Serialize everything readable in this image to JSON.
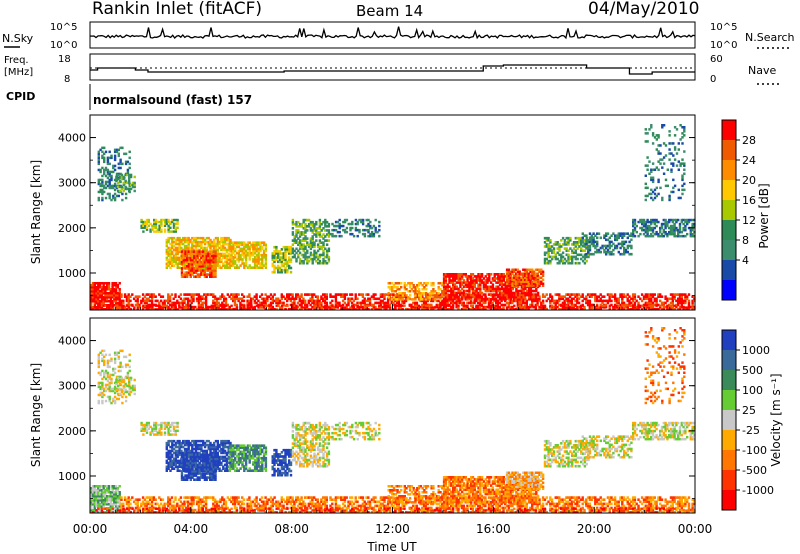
{
  "header": {
    "title": "Rankin Inlet (fitACF)",
    "beam": "Beam 14",
    "date": "04/May/2010"
  },
  "noise_panel": {
    "left_label": "N.Sky",
    "left_ticks": [
      "10^5",
      "10^0"
    ],
    "right_ticks": [
      "10^5",
      "10^0"
    ],
    "right_label": "N.Search"
  },
  "freq_panel": {
    "left_label_1": "Freq.",
    "left_label_2": "[MHz]",
    "left_ticks": [
      "18",
      "8"
    ],
    "right_ticks": [
      "60",
      "0"
    ],
    "right_label": "Nave"
  },
  "cpid": {
    "label": "CPID",
    "value": "normalsound (fast) 157"
  },
  "colorbars": {
    "power": {
      "label": "Power [dB]",
      "ticks": [
        "28",
        "24",
        "20",
        "16",
        "12",
        "8",
        "4"
      ],
      "colors": [
        "#ff0000",
        "#f05a00",
        "#ff8c00",
        "#ffc800",
        "#a8c800",
        "#2e8b57",
        "#3c8c6e",
        "#1a4aa8",
        "#0000ff"
      ]
    },
    "velocity": {
      "label": "Velocity [m s⁻¹]",
      "ticks": [
        "1000",
        "500",
        "100",
        "25",
        "-25",
        "-100",
        "-500",
        "-1000"
      ],
      "colors": [
        "#2040c0",
        "#3a6a9a",
        "#3a8a5a",
        "#66cc33",
        "#c8c8c8",
        "#ffaa00",
        "#ff7700",
        "#ff3300",
        "#ff0000"
      ]
    }
  },
  "x_axis": {
    "label": "Time UT",
    "ticks": [
      "00:00",
      "04:00",
      "08:00",
      "12:00",
      "16:00",
      "20:00",
      "00:00"
    ]
  },
  "chart_data": [
    {
      "type": "heatmap",
      "panel": "power",
      "xlabel": "",
      "ylabel": "Slant Range [km]",
      "y_ticks": [
        "1000",
        "2000",
        "3000",
        "4000"
      ],
      "x_range_hours": [
        0,
        24
      ],
      "y_range_km": [
        180,
        4500
      ],
      "colorbar_label": "Power [dB]",
      "clim": [
        0,
        30
      ]
    },
    {
      "type": "heatmap",
      "panel": "velocity",
      "xlabel": "Time UT",
      "ylabel": "Slant Range [km]",
      "y_ticks": [
        "1000",
        "2000",
        "3000",
        "4000"
      ],
      "x_range_hours": [
        0,
        24
      ],
      "y_range_km": [
        180,
        4500
      ],
      "colorbar_label": "Velocity [m s⁻¹]",
      "clim": [
        -1000,
        1000
      ]
    }
  ]
}
